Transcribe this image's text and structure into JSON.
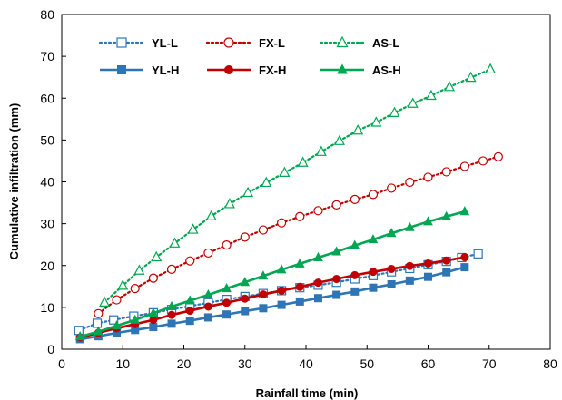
{
  "chart_data": {
    "type": "line",
    "xlabel": "Rainfall time (min)",
    "ylabel": "Cumulative infiltration (mm)",
    "xlim": [
      0,
      80
    ],
    "ylim": [
      0,
      80
    ],
    "xticks": [
      0,
      10,
      20,
      30,
      40,
      50,
      60,
      70,
      80
    ],
    "yticks": [
      0,
      10,
      20,
      30,
      40,
      50,
      60,
      70,
      80
    ],
    "grid": false,
    "legend_placement": "top-left",
    "series": [
      {
        "name": "YL-L",
        "color": "#2E75B6",
        "line": "dotted",
        "marker": "square",
        "filled": false,
        "x": [
          2.8,
          5.8,
          8.5,
          11.8,
          15,
          18,
          21,
          24,
          27,
          30,
          33,
          36,
          39,
          42,
          45,
          48,
          51,
          54,
          57,
          60,
          63,
          65.5,
          68.2
        ],
        "y": [
          4.5,
          6.2,
          7,
          7.9,
          8.7,
          9.5,
          10.3,
          11.1,
          11.9,
          12.6,
          13.3,
          14,
          14.7,
          15.3,
          16,
          16.8,
          17.6,
          18.5,
          19.3,
          20.2,
          21,
          21.9,
          22.8
        ]
      },
      {
        "name": "FX-L",
        "color": "#C00000",
        "line": "dotted",
        "marker": "circle",
        "filled": false,
        "x": [
          6,
          9,
          12,
          15,
          18,
          21,
          24,
          27,
          30,
          33,
          36,
          39,
          42,
          45,
          48,
          51,
          54,
          57,
          60,
          63,
          66,
          69,
          71.5
        ],
        "y": [
          8.5,
          11.8,
          14.5,
          17,
          19.1,
          21.1,
          23,
          24.9,
          26.8,
          28.5,
          30.2,
          31.7,
          33.1,
          34.5,
          35.8,
          37,
          38.5,
          39.9,
          41.1,
          42.4,
          43.7,
          45,
          46
        ]
      },
      {
        "name": "AS-L",
        "color": "#00A651",
        "line": "dotted",
        "marker": "triangle",
        "filled": false,
        "x": [
          7,
          10,
          12.7,
          15.5,
          18.5,
          21.5,
          24.5,
          27.5,
          30.5,
          33.5,
          36.5,
          39.5,
          42.5,
          45.5,
          48.5,
          51.5,
          54.5,
          57.5,
          60.5,
          63.5,
          67,
          70.2
        ],
        "y": [
          11.2,
          15.2,
          18.8,
          22,
          25.3,
          28.6,
          31.8,
          34.7,
          37.4,
          39.8,
          42.2,
          44.6,
          47.2,
          49.8,
          52.3,
          54.2,
          56.5,
          58.7,
          60.6,
          62.7,
          64.9,
          66.9
        ]
      },
      {
        "name": "YL-H",
        "color": "#2E75B6",
        "line": "solid",
        "marker": "square",
        "filled": true,
        "x": [
          3,
          6,
          9,
          12,
          15,
          18,
          21,
          24,
          27,
          30,
          33,
          36,
          39,
          42,
          45,
          48,
          51,
          54,
          57,
          60,
          63,
          66
        ],
        "y": [
          2.4,
          3.1,
          3.9,
          4.6,
          5.3,
          6.1,
          6.8,
          7.6,
          8.3,
          9.1,
          9.8,
          10.6,
          11.4,
          12.2,
          13,
          13.8,
          14.7,
          15.5,
          16.4,
          17.3,
          18.4,
          19.6
        ]
      },
      {
        "name": "FX-H",
        "color": "#C00000",
        "line": "solid",
        "marker": "circle",
        "filled": true,
        "x": [
          3,
          6,
          9,
          12,
          15,
          18,
          21,
          24,
          27,
          30,
          33,
          36,
          39,
          42,
          45,
          48,
          51,
          54,
          57,
          60,
          63,
          66
        ],
        "y": [
          2.8,
          3.9,
          5,
          6,
          7,
          8.2,
          9.2,
          10.2,
          11.1,
          12.1,
          13.1,
          14,
          14.9,
          15.9,
          16.8,
          17.7,
          18.5,
          19.2,
          19.9,
          20.5,
          21.2,
          22
        ]
      },
      {
        "name": "AS-H",
        "color": "#00A651",
        "line": "solid",
        "marker": "triangle",
        "filled": true,
        "x": [
          3,
          6,
          9,
          12,
          15,
          18,
          21,
          24,
          27,
          30,
          33,
          36,
          39,
          42,
          45,
          48,
          51,
          54,
          57,
          60,
          63,
          66
        ],
        "y": [
          3,
          4.2,
          5.6,
          7,
          8.6,
          10.2,
          11.6,
          13,
          14.5,
          16,
          17.5,
          19,
          20.4,
          21.9,
          23.3,
          24.8,
          26.2,
          27.7,
          29.1,
          30.5,
          31.7,
          32.9
        ]
      }
    ]
  }
}
